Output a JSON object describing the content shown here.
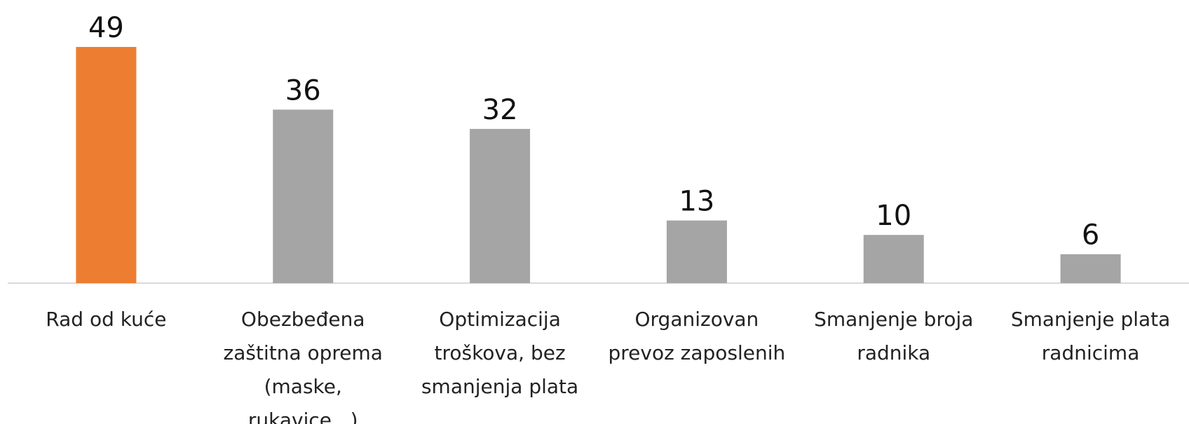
{
  "chart_data": {
    "type": "bar",
    "categories": [
      "Rad od kuće",
      "Obezbeđena zaštitna oprema (maske, rukavice...)",
      "Optimizacija troškova, bez smanjenja plata",
      "Organizovan prevoz zaposlenih",
      "Smanjenje broja radnika",
      "Smanjenje plata radnicima"
    ],
    "values": [
      49,
      36,
      32,
      13,
      10,
      6
    ],
    "colors": [
      "#ed7d31",
      "#a5a5a5",
      "#a5a5a5",
      "#a5a5a5",
      "#a5a5a5",
      "#a5a5a5"
    ]
  }
}
